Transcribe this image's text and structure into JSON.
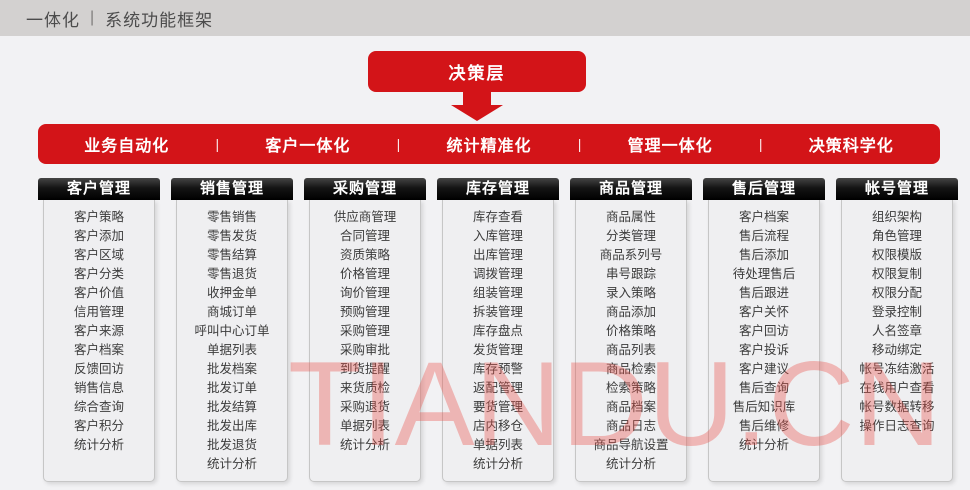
{
  "header": {
    "title_left": "一体化",
    "separator": "|",
    "title_right": "系统功能框架"
  },
  "decision_box": {
    "label": "决策层"
  },
  "feature_bar": {
    "separator": "|",
    "items": [
      "业务自动化",
      "客户一体化",
      "统计精准化",
      "管理一体化",
      "决策科学化"
    ]
  },
  "columns": [
    {
      "title": "客户管理",
      "items": [
        "客户策略",
        "客户添加",
        "客户区域",
        "客户分类",
        "客户价值",
        "信用管理",
        "客户来源",
        "客户档案",
        "反馈回访",
        "销售信息",
        "综合查询",
        "客户积分",
        "统计分析"
      ]
    },
    {
      "title": "销售管理",
      "items": [
        "零售销售",
        "零售发货",
        "零售结算",
        "零售退货",
        "收押金单",
        "商城订单",
        "呼叫中心订单",
        "单据列表",
        "批发档案",
        "批发订单",
        "批发结算",
        "批发出库",
        "批发退货",
        "统计分析"
      ]
    },
    {
      "title": "采购管理",
      "items": [
        "供应商管理",
        "合同管理",
        "资质策略",
        "价格管理",
        "询价管理",
        "预购管理",
        "采购管理",
        "采购审批",
        "到货提醒",
        "来货质检",
        "采购退货",
        "单据列表",
        "统计分析"
      ]
    },
    {
      "title": "库存管理",
      "items": [
        "库存查看",
        "入库管理",
        "出库管理",
        "调拨管理",
        "组装管理",
        "拆装管理",
        "库存盘点",
        "发货管理",
        "库存预警",
        "返配管理",
        "要货管理",
        "店内移仓",
        "单据列表",
        "统计分析"
      ]
    },
    {
      "title": "商品管理",
      "items": [
        "商品属性",
        "分类管理",
        "商品系列号",
        "串号跟踪",
        "录入策略",
        "商品添加",
        "价格策略",
        "商品列表",
        "商品检索",
        "检索策略",
        "商品档案",
        "商品日志",
        "商品导航设置",
        "统计分析"
      ]
    },
    {
      "title": "售后管理",
      "items": [
        "客户档案",
        "售后流程",
        "售后添加",
        "待处理售后",
        "售后跟进",
        "客户关怀",
        "客户回访",
        "客户投诉",
        "客户建议",
        "售后查询",
        "售后知识库",
        "售后维修",
        "统计分析"
      ]
    },
    {
      "title": "帐号管理",
      "items": [
        "组织架构",
        "角色管理",
        "权限模版",
        "权限复制",
        "权限分配",
        "登录控制",
        "人名签章",
        "移动绑定",
        "帐号冻结激活",
        "在线用户查看",
        "帐号数据转移",
        "操作日志查询"
      ]
    }
  ],
  "watermark": "TIANDU.CN",
  "colors": {
    "accent_red": "#d31418",
    "header_black": "#000000",
    "topbar_gray": "#d3d1d0"
  }
}
